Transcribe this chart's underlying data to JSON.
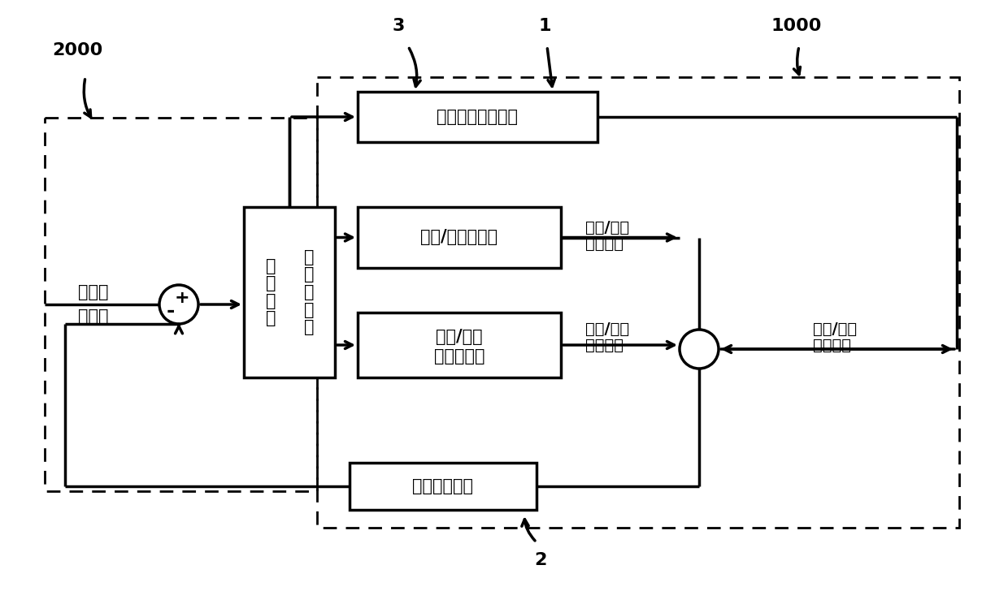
{
  "bg_color": "#ffffff",
  "label_2000": "2000",
  "label_1": "1",
  "label_2": "2",
  "label_3": "3",
  "label_1000": "1000",
  "box_ideal_line1": "理想端",
  "box_ideal_line2": "点位置",
  "box_motion_left": "运\n动\n分\n解",
  "box_motion_right": "运\n动\n规\n划\n与",
  "box_sensor": "六自由度力传感器",
  "box_rotator": "导丝/导轨旋转器",
  "box_linear_line1": "导丝/导轨",
  "box_linear_line2": "直线运动器",
  "box_measured": "实测端点位置",
  "label_rotation_line1": "导丝/导管",
  "label_rotation_line2": "旋转运动",
  "label_linear_line1": "导丝/导管",
  "label_linear_line2": "直线运动",
  "label_output_line1": "导丝/导管",
  "label_output_line2": "端点运动",
  "plus_sign": "+",
  "minus_sign": "-"
}
